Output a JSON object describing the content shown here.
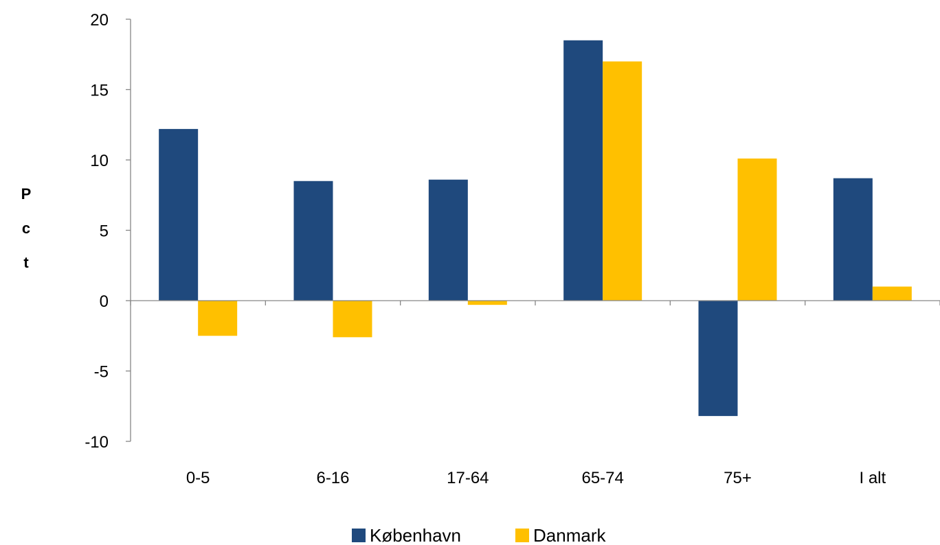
{
  "chart_data": {
    "type": "bar",
    "title": "",
    "xlabel": "",
    "ylabel": "Pct",
    "categories": [
      "0-5",
      "6-16",
      "17-64",
      "65-74",
      "75+",
      "I alt"
    ],
    "series": [
      {
        "name": "København",
        "color": "#1F497D",
        "values": [
          12.2,
          8.5,
          8.6,
          18.5,
          -8.2,
          8.7
        ]
      },
      {
        "name": "Danmark",
        "color": "#FFC000",
        "values": [
          -2.5,
          -2.6,
          -0.3,
          17.0,
          10.1,
          1.0
        ]
      }
    ],
    "ylim": [
      -10,
      20
    ],
    "yticks": [
      "-10",
      "-5",
      "0",
      "5",
      "10",
      "15",
      "20"
    ],
    "grid": false,
    "legend_position": "bottom"
  }
}
